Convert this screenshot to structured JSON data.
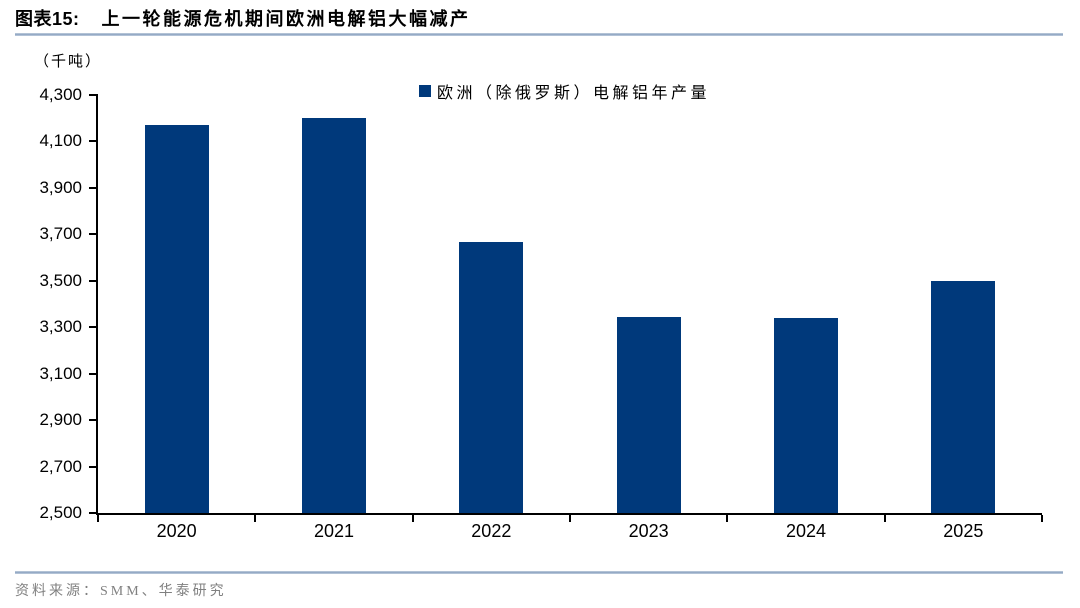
{
  "header": {
    "figure_label": "图表15:",
    "title": "上一轮能源危机期间欧洲电解铝大幅减产"
  },
  "chart_data": {
    "type": "bar",
    "title": "上一轮能源危机期间欧洲电解铝大幅减产",
    "unit": "（千吨）",
    "legend": [
      "欧洲（除俄罗斯）电解铝年产量"
    ],
    "legend_position": "top-center",
    "categories": [
      "2020",
      "2021",
      "2022",
      "2023",
      "2024",
      "2025"
    ],
    "values": [
      4170,
      4200,
      3665,
      3345,
      3340,
      3500
    ],
    "xlabel": "",
    "ylabel": "（千吨）",
    "ylim": [
      2500,
      4300
    ],
    "ytick_step": 200,
    "ytick_labels": [
      "4,300",
      "4,100",
      "3,900",
      "3,700",
      "3,500",
      "3,300",
      "3,100",
      "2,900",
      "2,700",
      "2,500"
    ],
    "grid": false,
    "bar_color": "#00397b"
  },
  "footer": {
    "source": "资料来源：SMM、华泰研究"
  }
}
